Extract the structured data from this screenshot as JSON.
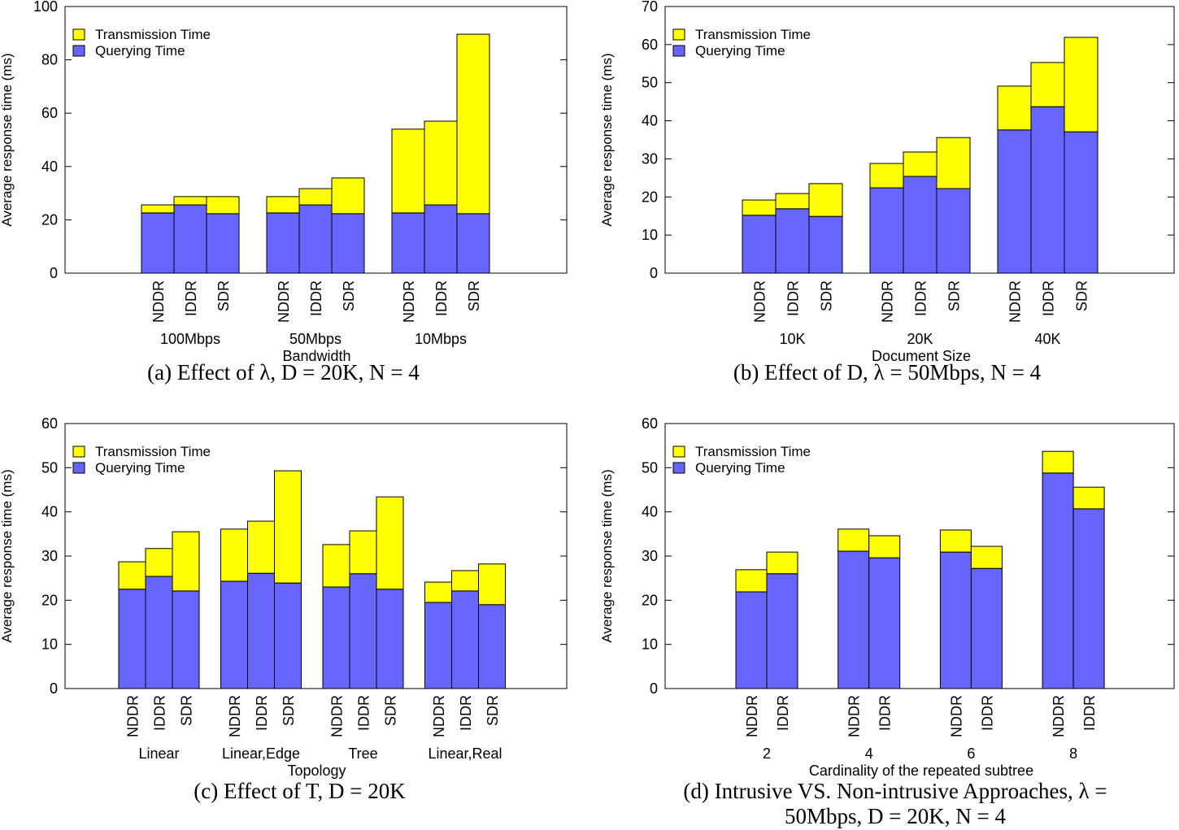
{
  "colors": {
    "transmission": "#ffff00",
    "querying": "#6666ff"
  },
  "chart_data": [
    {
      "type": "bar",
      "stacked": true,
      "ylabel": "Average response time (ms)",
      "xlabel": "Bandwidth",
      "caption": "(a) Effect of λ, D = 20K, N = 4",
      "ylim": [
        0,
        100
      ],
      "yticks": [
        0,
        20,
        40,
        60,
        80,
        100
      ],
      "legend": [
        "Transmission Time",
        "Querying Time"
      ],
      "legend_position": "top-left",
      "groups": [
        "100Mbps",
        "50Mbps",
        "10Mbps"
      ],
      "bars": [
        "NDDR",
        "IDDR",
        "SDR"
      ],
      "series": [
        {
          "name": "Querying Time",
          "values": [
            [
              22.6,
              25.6,
              22.3
            ],
            [
              22.6,
              25.6,
              22.3
            ],
            [
              22.6,
              25.6,
              22.3
            ]
          ]
        },
        {
          "name": "Transmission Time",
          "values": [
            [
              3.0,
              3.1,
              6.4
            ],
            [
              6.1,
              6.1,
              13.4
            ],
            [
              31.4,
              31.4,
              67.3
            ]
          ]
        }
      ]
    },
    {
      "type": "bar",
      "stacked": true,
      "ylabel": "Average response time (ms)",
      "xlabel": "Document Size",
      "caption": "(b) Effect of D, λ = 50Mbps, N = 4",
      "ylim": [
        0,
        70
      ],
      "yticks": [
        0,
        10,
        20,
        30,
        40,
        50,
        60,
        70
      ],
      "legend": [
        "Transmission Time",
        "Querying Time"
      ],
      "legend_position": "top-left",
      "groups": [
        "10K",
        "20K",
        "40K"
      ],
      "bars": [
        "NDDR",
        "IDDR",
        "SDR"
      ],
      "series": [
        {
          "name": "Querying Time",
          "values": [
            [
              15.2,
              16.9,
              14.9
            ],
            [
              22.4,
              25.4,
              22.2
            ],
            [
              37.6,
              43.7,
              37.1
            ]
          ]
        },
        {
          "name": "Transmission Time",
          "values": [
            [
              4.0,
              4.0,
              8.6
            ],
            [
              6.4,
              6.4,
              13.4
            ],
            [
              11.5,
              11.6,
              24.8
            ]
          ]
        }
      ]
    },
    {
      "type": "bar",
      "stacked": true,
      "ylabel": "Average response time (ms)",
      "xlabel": "Topology",
      "caption": "(c) Effect of T, D = 20K",
      "ylim": [
        0,
        60
      ],
      "yticks": [
        0,
        10,
        20,
        30,
        40,
        50,
        60
      ],
      "legend": [
        "Transmission Time",
        "Querying Time"
      ],
      "legend_position": "top-left",
      "groups": [
        "Linear",
        "Linear,Edge",
        "Tree",
        "Linear,Real"
      ],
      "bars": [
        "NDDR",
        "IDDR",
        "SDR"
      ],
      "series": [
        {
          "name": "Querying Time",
          "values": [
            [
              22.5,
              25.4,
              22.1
            ],
            [
              24.3,
              26.1,
              23.9
            ],
            [
              23.0,
              26.0,
              22.5
            ],
            [
              19.5,
              22.1,
              19.0
            ]
          ]
        },
        {
          "name": "Transmission Time",
          "values": [
            [
              6.2,
              6.3,
              13.4
            ],
            [
              11.8,
              11.8,
              25.4
            ],
            [
              9.6,
              9.7,
              20.9
            ],
            [
              4.6,
              4.6,
              9.2
            ]
          ]
        }
      ]
    },
    {
      "type": "bar",
      "stacked": true,
      "ylabel": "Average response time (ms)",
      "xlabel": "Cardinality of the repeated subtree",
      "caption": "(d) Intrusive VS. Non-intrusive Approaches, λ = 50Mbps, D = 20K, N = 4",
      "caption_lines": [
        "(d) Intrusive VS. Non-intrusive Approaches, λ =",
        "50Mbps, D = 20K, N = 4"
      ],
      "ylim": [
        0,
        60
      ],
      "yticks": [
        0,
        10,
        20,
        30,
        40,
        50,
        60
      ],
      "legend": [
        "Transmission Time",
        "Querying Time"
      ],
      "legend_position": "top-left",
      "groups": [
        "2",
        "4",
        "6",
        "8"
      ],
      "bars": [
        "NDDR",
        "IDDR"
      ],
      "series": [
        {
          "name": "Querying Time",
          "values": [
            [
              21.9,
              26.0
            ],
            [
              31.1,
              29.6
            ],
            [
              30.9,
              27.2
            ],
            [
              48.8,
              40.7
            ]
          ]
        },
        {
          "name": "Transmission Time",
          "values": [
            [
              5.0,
              4.9
            ],
            [
              5.0,
              5.0
            ],
            [
              5.0,
              5.0
            ],
            [
              4.9,
              4.9
            ]
          ]
        }
      ]
    }
  ]
}
